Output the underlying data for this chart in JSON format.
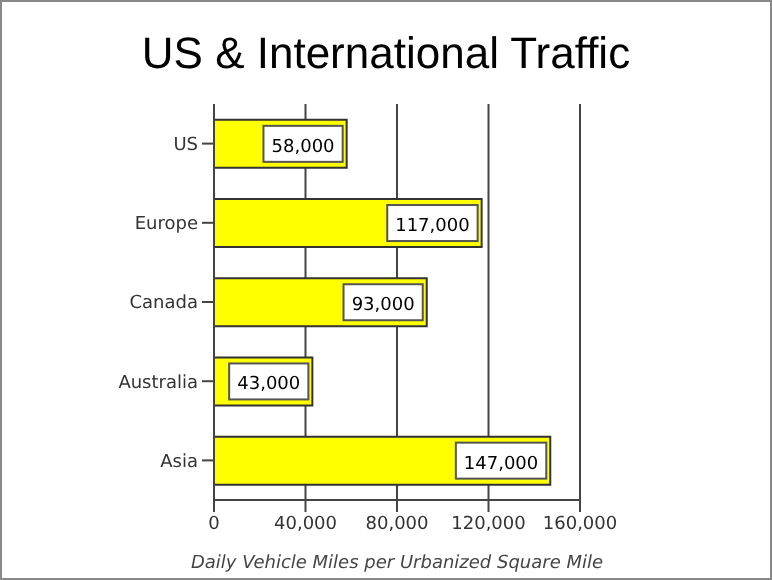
{
  "chart_data": {
    "type": "bar",
    "orientation": "horizontal",
    "title": "US & International Traffic",
    "xlabel": "Daily Vehicle Miles per Urbanized Square Mile",
    "categories": [
      "US",
      "Europe",
      "Canada",
      "Australia",
      "Asia"
    ],
    "values": [
      58000,
      117000,
      93000,
      43000,
      147000
    ],
    "value_labels": [
      "58,000",
      "117,000",
      "93,000",
      "43,000",
      "147,000"
    ],
    "color": "#ffff00",
    "xlim": [
      0,
      160000
    ],
    "xticks": [
      0,
      {
        "value": 40000,
        "label": "40,000"
      },
      {
        "value": 80000,
        "label": "80,000"
      },
      {
        "value": 120000,
        "label": "120,000"
      },
      {
        "value": 160000,
        "label": "160,000"
      }
    ],
    "grid": "x"
  }
}
